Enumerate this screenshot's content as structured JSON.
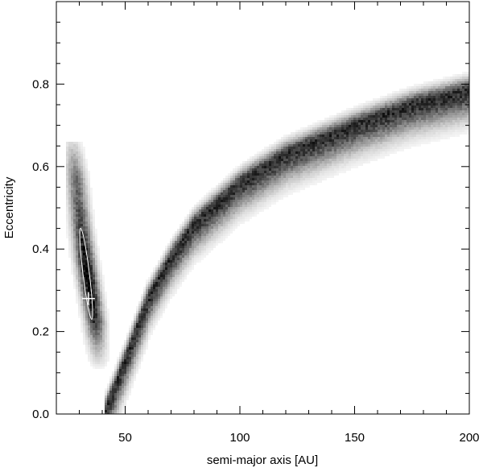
{
  "chart_data": {
    "type": "heatmap",
    "title": "",
    "xlabel": "semi-major axis [AU]",
    "ylabel": "Eccentricity",
    "xlim": [
      20,
      200
    ],
    "ylim": [
      0.0,
      1.0
    ],
    "x_ticks": [
      50,
      100,
      150,
      200
    ],
    "x_tick_labels": [
      "50",
      "100",
      "150",
      "200"
    ],
    "y_ticks": [
      0.0,
      0.2,
      0.4,
      0.6,
      0.8
    ],
    "y_tick_labels": [
      "0.0",
      "0.2",
      "0.4",
      "0.6",
      "0.8"
    ],
    "x_minor_step": 10,
    "y_minor_step": 0.05,
    "colormap": "grayscale (white = low density, black = high density)",
    "regions": [
      {
        "id": "inner-island",
        "description": "compact dense region of solutions",
        "x_range": [
          26,
          43
        ],
        "e_range": [
          0.1,
          0.69
        ],
        "ridge": [
          [
            27,
            0.66
          ],
          [
            29,
            0.55
          ],
          [
            31,
            0.44
          ],
          [
            33,
            0.36
          ],
          [
            35,
            0.29
          ],
          [
            37,
            0.22
          ],
          [
            38,
            0.15
          ],
          [
            39,
            0.1
          ]
        ],
        "half_width_au": 4.5
      },
      {
        "id": "outer-arc",
        "description": "arc of solutions along the periastron constraint",
        "x_range": [
          40,
          200
        ],
        "e_range": [
          0.0,
          0.8
        ],
        "ridge": [
          [
            41,
            0.0
          ],
          [
            50,
            0.13
          ],
          [
            60,
            0.28
          ],
          [
            70,
            0.38
          ],
          [
            80,
            0.46
          ],
          [
            100,
            0.56
          ],
          [
            120,
            0.63
          ],
          [
            150,
            0.7
          ],
          [
            175,
            0.75
          ],
          [
            200,
            0.785
          ]
        ],
        "half_width_e": 0.04
      }
    ],
    "contour_ellipse": {
      "center": [
        33,
        0.34
      ],
      "color": "#ffffff"
    },
    "best_fit_marker": {
      "x": 34,
      "e": 0.28,
      "symbol": "+",
      "color": "#ffffff"
    }
  }
}
